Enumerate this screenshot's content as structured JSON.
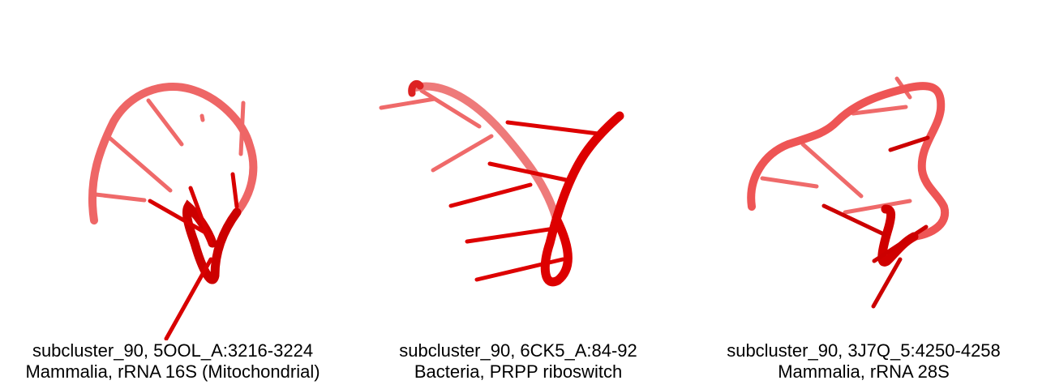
{
  "panels": [
    {
      "id_line": "subcluster_90, 5OOL_A:3216-3224",
      "desc_line": "Mammalia, rRNA 16S (Mitochondrial)"
    },
    {
      "id_line": "subcluster_90, 6CK5_A:84-92",
      "desc_line": "Bacteria, PRPP riboswitch"
    },
    {
      "id_line": "subcluster_90, 3J7Q_5:4250-4258",
      "desc_line": "Mammalia, rRNA 28S"
    }
  ],
  "colors": {
    "strand_light": "#f07070",
    "strand_dark": "#d00000",
    "base_stick": "#e00000",
    "base_stick_light": "#ef6a6a"
  }
}
